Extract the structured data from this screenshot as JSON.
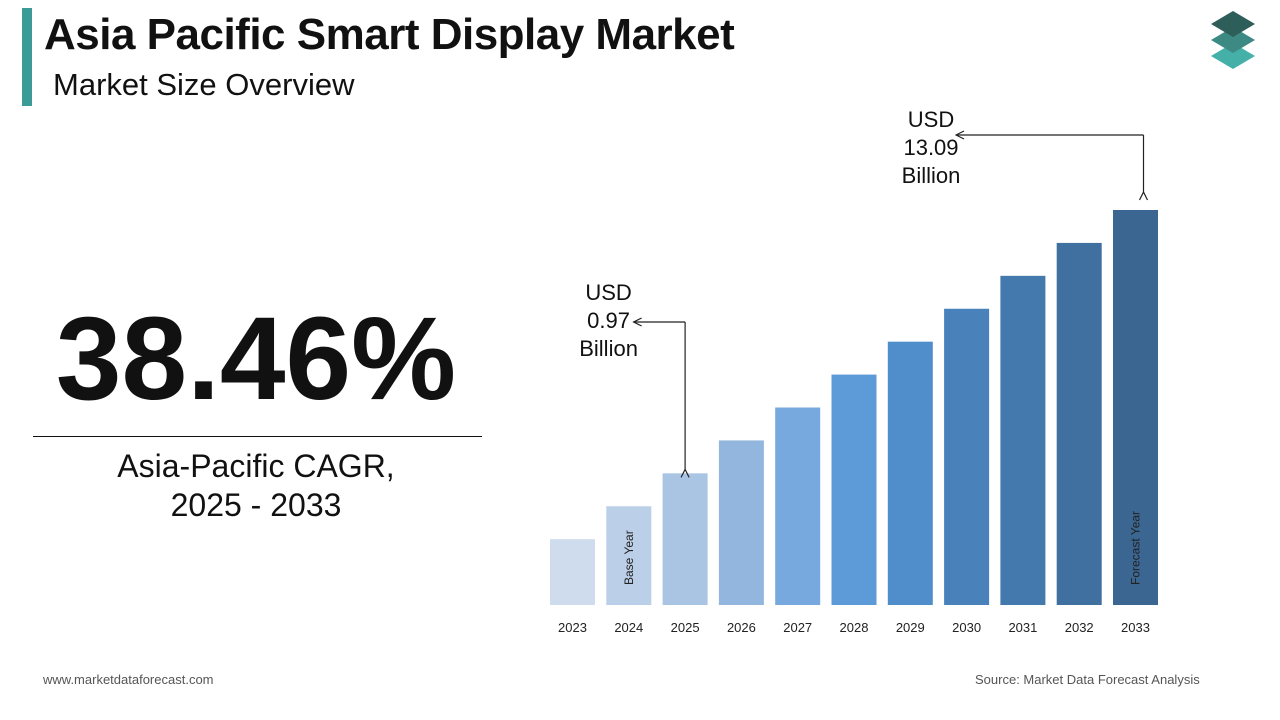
{
  "header": {
    "title": "Asia Pacific Smart Display Market",
    "subtitle": "Market Size Overview"
  },
  "kpi": {
    "cagr_value": "38.46%",
    "cagr_label_line1": "Asia-Pacific CAGR,",
    "cagr_label_line2": "2025 - 2033"
  },
  "footer": {
    "website": "www.marketdataforecast.com",
    "source": "Source: Market Data Forecast Analysis"
  },
  "colors": {
    "accent": "#3d9b97",
    "logo_top": "#2e5e5a",
    "logo_mid": "#3d8a84",
    "logo_bottom": "#45b0a8"
  },
  "chart_data": {
    "type": "bar",
    "categories": [
      "2023",
      "2024",
      "2025",
      "2026",
      "2027",
      "2028",
      "2029",
      "2030",
      "2031",
      "2032",
      "2033"
    ],
    "values": [
      2,
      3,
      4,
      5,
      6,
      7,
      8,
      9,
      10,
      11,
      12
    ],
    "bar_colors": [
      "#cfdcee",
      "#bccfe8",
      "#aac4e4",
      "#93b6df",
      "#78a9de",
      "#5d9bd8",
      "#4f8ecb",
      "#4982bb",
      "#4479ad",
      "#3f70a0",
      "#3a6691"
    ],
    "bar_labels": [
      {
        "category": "2024",
        "text": "Base Year"
      },
      {
        "category": "2033",
        "text": "Forecast Year"
      }
    ],
    "annotations": [
      {
        "category": "2025",
        "lines": [
          "USD",
          "0.97",
          "Billion"
        ]
      },
      {
        "category": "2033",
        "lines": [
          "USD",
          "13.09",
          "Billion"
        ]
      }
    ],
    "xlabel": "",
    "ylabel": "",
    "ylim": [
      0,
      12
    ],
    "grid": false,
    "y_axis_shown": false
  }
}
